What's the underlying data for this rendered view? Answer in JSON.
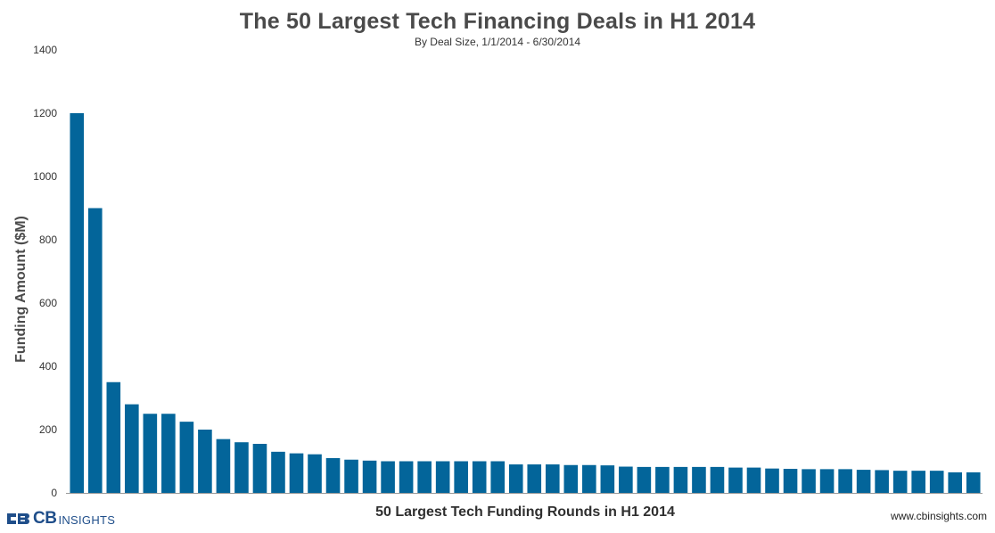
{
  "chart_data": {
    "type": "bar",
    "title": "The 50 Largest Tech Financing Deals in H1 2014",
    "subtitle": "By Deal Size,  1/1/2014 - 6/30/2014",
    "xlabel": "50 Largest Tech Funding Rounds in H1 2014",
    "ylabel": "Funding Amount  ($M)",
    "ylim": [
      0,
      1400
    ],
    "yticks": [
      0,
      200,
      400,
      600,
      800,
      1000,
      1200,
      1400
    ],
    "bar_color": "#03659a",
    "grid": false,
    "legend": "none",
    "values": [
      1200,
      900,
      350,
      280,
      250,
      250,
      225,
      200,
      170,
      160,
      155,
      130,
      125,
      122,
      110,
      105,
      102,
      100,
      100,
      100,
      100,
      100,
      100,
      100,
      90,
      90,
      90,
      88,
      88,
      87,
      83,
      82,
      82,
      82,
      82,
      82,
      80,
      80,
      77,
      76,
      75,
      75,
      75,
      73,
      72,
      70,
      70,
      70,
      65,
      65
    ]
  },
  "branding": {
    "logo_cb": "CB",
    "logo_insights": "INSIGHTS",
    "website": "www.cbinsights.com",
    "brand_color": "#1f4e8a"
  }
}
